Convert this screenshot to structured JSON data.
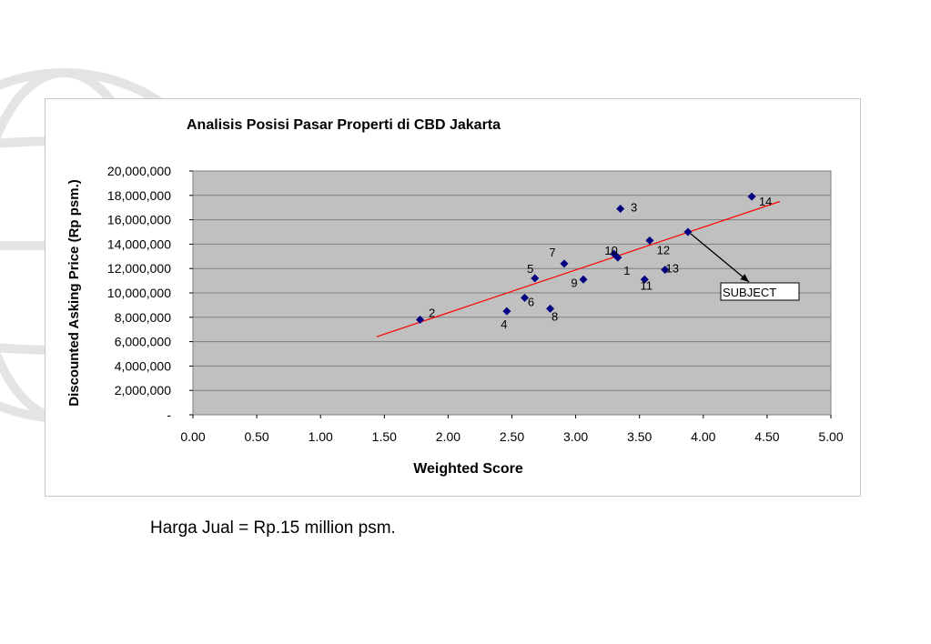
{
  "caption": "Harga Jual = Rp.15 million psm.",
  "colors": {
    "plot_bg": "#c0c0c0",
    "marker": "#000080",
    "trendline": "#ff0000",
    "grid": "#808080"
  },
  "chart_data": {
    "type": "scatter",
    "title": "Analisis Posisi Pasar Properti di CBD Jakarta",
    "xlabel": "Weighted Score",
    "ylabel": "Discounted Asking Price (Rp psm.)",
    "xlim": [
      0,
      5
    ],
    "ylim": [
      0,
      20000000
    ],
    "x_ticks": [
      "0.00",
      "0.50",
      "1.00",
      "1.50",
      "2.00",
      "2.50",
      "3.00",
      "3.50",
      "4.00",
      "4.50",
      "5.00"
    ],
    "y_ticks": [
      "-",
      "2,000,000",
      "4,000,000",
      "6,000,000",
      "8,000,000",
      "10,000,000",
      "12,000,000",
      "14,000,000",
      "16,000,000",
      "18,000,000",
      "20,000,000"
    ],
    "grid": true,
    "legend": "none",
    "points": [
      {
        "label": "1",
        "x": 3.33,
        "y": 12900000
      },
      {
        "label": "2",
        "x": 1.78,
        "y": 7800000
      },
      {
        "label": "3",
        "x": 3.35,
        "y": 16900000
      },
      {
        "label": "4",
        "x": 2.46,
        "y": 8500000
      },
      {
        "label": "5",
        "x": 2.68,
        "y": 11200000
      },
      {
        "label": "6",
        "x": 2.6,
        "y": 9600000
      },
      {
        "label": "7",
        "x": 2.91,
        "y": 12400000
      },
      {
        "label": "8",
        "x": 2.8,
        "y": 8700000
      },
      {
        "label": "9",
        "x": 3.06,
        "y": 11100000
      },
      {
        "label": "10",
        "x": 3.3,
        "y": 13200000
      },
      {
        "label": "11",
        "x": 3.54,
        "y": 11100000
      },
      {
        "label": "12",
        "x": 3.58,
        "y": 14300000
      },
      {
        "label": "13",
        "x": 3.7,
        "y": 11900000
      },
      {
        "label": "14",
        "x": 4.38,
        "y": 17900000
      }
    ],
    "subject": {
      "label": "SUBJECT",
      "x": 3.88,
      "y": 15000000
    },
    "trendline": [
      {
        "x": 1.44,
        "y": 6400000
      },
      {
        "x": 4.6,
        "y": 17500000
      }
    ]
  }
}
